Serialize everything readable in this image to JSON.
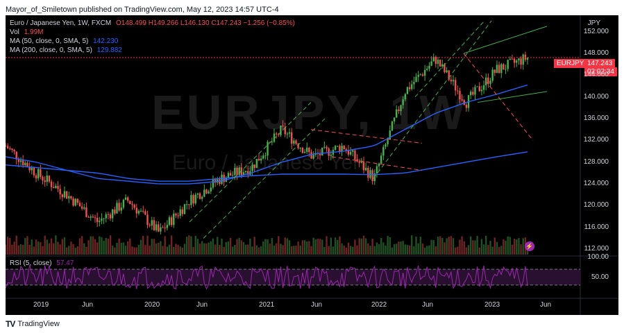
{
  "header": {
    "publish_line": "Mayor_of_Smiletown published on TradingView.com, May 12, 2023 14:57 UTC-4"
  },
  "watermark": {
    "symbol": "EURJPY, 1W",
    "name": "Euro / Japanese Yen"
  },
  "legend": {
    "symbol_line": "Euro / Japanese Yen, 1W, FXCM",
    "ohlc": "O148.499 H149.266 L146.130 C147.243 −1.256 (−0.85%)",
    "vol_label": "Vol",
    "vol_value": "1.99M",
    "ma50_label": "MA (50, close, 0, SMA, 5)",
    "ma50_value": "142.230",
    "ma200_label": "MA (200, close, 0, SMA, 5)",
    "ma200_value": "129.882",
    "rsi_label": "RSI (5, close)",
    "rsi_value": "57.47"
  },
  "price_scale": {
    "currency": "JPY",
    "ticks": [
      "152.000",
      "148.000",
      "144.000",
      "140.000",
      "136.000",
      "132.000",
      "128.000",
      "124.000",
      "120.000",
      "116.000",
      "112.000"
    ]
  },
  "rsi_scale": {
    "ticks": [
      "100.00",
      "50.00"
    ]
  },
  "time_scale": {
    "ticks": [
      "2019",
      "Jun",
      "2020",
      "Jun",
      "2021",
      "Jun",
      "2022",
      "Jun",
      "2023",
      "Jun"
    ]
  },
  "last_price": {
    "symbol": "EURJPY",
    "price": "147.243",
    "countdown": "02:02:34"
  },
  "footer": {
    "brand": "TradingView"
  },
  "chart_data": {
    "type": "line",
    "title": "Euro / Japanese Yen, 1W, FXCM",
    "x": [
      "2018-10",
      "2019-01",
      "2019-06",
      "2019-09",
      "2020-01",
      "2020-05",
      "2020-06",
      "2020-09",
      "2021-01",
      "2021-06",
      "2021-10",
      "2022-01",
      "2022-03",
      "2022-06",
      "2022-10",
      "2023-01",
      "2023-03",
      "2023-05"
    ],
    "ylim": [
      111,
      154
    ],
    "series": [
      {
        "name": "EURJPY",
        "values": [
          131,
          126,
          122,
          117,
          121,
          115,
          121,
          125,
          127,
          134,
          129,
          131,
          125,
          141,
          147,
          139,
          145,
          147.2
        ]
      },
      {
        "name": "MA (50, close, 0, SMA, 5)",
        "values": [
          129,
          128,
          126.5,
          125,
          124.5,
          124,
          124,
          124.5,
          126,
          128,
          129.5,
          130,
          131,
          134,
          137,
          139,
          140.5,
          142.2
        ]
      },
      {
        "name": "MA (200, close, 0, SMA, 5)",
        "values": [
          127.5,
          127,
          126.5,
          126,
          125,
          124.5,
          124.5,
          125,
          125.5,
          125.8,
          125.8,
          125.8,
          125.7,
          126,
          127,
          128,
          129,
          129.9
        ]
      }
    ],
    "rsi": {
      "name": "RSI (5, close)",
      "last": 57.47,
      "ylim": [
        0,
        100
      ]
    },
    "colors": {
      "up": "#26a69a",
      "up_bright": "#4caf50",
      "down": "#ef5350",
      "ma50": "#2962ff",
      "ma200": "#2962ff",
      "rsi": "#9c27b0",
      "price_tag": "#f23645"
    }
  }
}
